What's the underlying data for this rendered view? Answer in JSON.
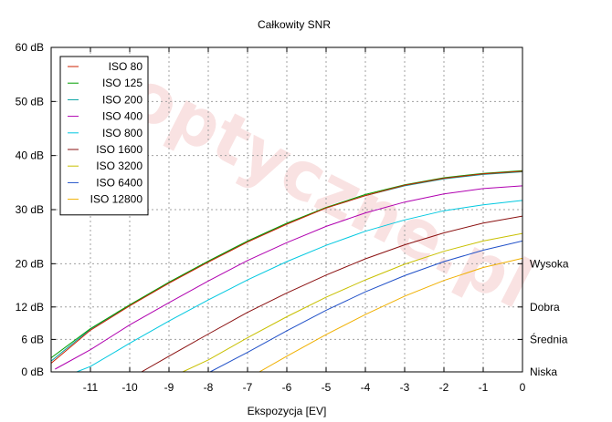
{
  "chart_data": {
    "type": "line",
    "title": "Całkowity SNR",
    "xlabel": "Ekspozycja [EV]",
    "ylabel": "",
    "xlim": [
      -12,
      0
    ],
    "ylim": [
      0,
      60
    ],
    "grid": true,
    "legend_position": "top-left",
    "x_ticks": [
      -11,
      -10,
      -9,
      -8,
      -7,
      -6,
      -5,
      -4,
      -3,
      -2,
      -1,
      0
    ],
    "x_tick_labels": [
      "-11",
      "-10",
      "-9",
      "-8",
      "-7",
      "-6",
      "-5",
      "-4",
      "-3",
      "-2",
      "-1",
      "0"
    ],
    "y_ticks": [
      0,
      6,
      12,
      20,
      30,
      40,
      50,
      60
    ],
    "y_tick_labels": [
      "0 dB",
      "6 dB",
      "12 dB",
      "20 dB",
      "30 dB",
      "40 dB",
      "50 dB",
      "60 dB"
    ],
    "right_ticks": [
      {
        "y": 0,
        "label": "Niska"
      },
      {
        "y": 6,
        "label": "Średnia"
      },
      {
        "y": 12,
        "label": "Dobra"
      },
      {
        "y": 20,
        "label": "Wysoka"
      }
    ],
    "watermark": "optyczne.pl",
    "series": [
      {
        "name": "ISO 80",
        "color": "#cc2200",
        "x": [
          -12,
          -11,
          -10,
          -9,
          -8,
          -7,
          -6,
          -5,
          -4,
          -3,
          -2,
          -1,
          0
        ],
        "y": [
          1.6,
          7.7,
          12.2,
          16.4,
          20.3,
          24.0,
          27.3,
          30.3,
          32.6,
          34.5,
          35.8,
          36.6,
          37.1
        ]
      },
      {
        "name": "ISO 125",
        "color": "#00a000",
        "x": [
          -12,
          -11,
          -10,
          -9,
          -8,
          -7,
          -6,
          -5,
          -4,
          -3,
          -2,
          -1,
          0
        ],
        "y": [
          2.6,
          8.0,
          12.4,
          16.6,
          20.5,
          24.2,
          27.5,
          30.4,
          32.8,
          34.6,
          35.9,
          36.7,
          37.2
        ]
      },
      {
        "name": "ISO 200",
        "color": "#00a0a0",
        "x": [
          -12,
          -11,
          -10,
          -9,
          -8,
          -7,
          -6,
          -5,
          -4,
          -3,
          -2,
          -1,
          0
        ],
        "y": [
          2.0,
          7.9,
          12.3,
          16.5,
          20.4,
          24.1,
          27.4,
          30.3,
          32.6,
          34.4,
          35.7,
          36.5,
          37.0
        ]
      },
      {
        "name": "ISO 400",
        "color": "#b000b0",
        "x": [
          -11.9,
          -11,
          -10,
          -9,
          -8,
          -7,
          -6,
          -5,
          -4,
          -3,
          -2,
          -1,
          0
        ],
        "y": [
          0.5,
          4.1,
          8.7,
          12.8,
          16.8,
          20.6,
          23.9,
          26.9,
          29.4,
          31.4,
          32.9,
          33.9,
          34.4
        ]
      },
      {
        "name": "ISO 800",
        "color": "#00c8e0",
        "x": [
          -11.35,
          -11,
          -10,
          -9,
          -8,
          -7,
          -6,
          -5,
          -4,
          -3,
          -2,
          -1,
          0
        ],
        "y": [
          0,
          1.0,
          5.3,
          9.4,
          13.3,
          17.0,
          20.4,
          23.4,
          26.0,
          28.1,
          29.8,
          30.9,
          31.7
        ]
      },
      {
        "name": "ISO 1600",
        "color": "#8a1010",
        "x": [
          -9.7,
          -9,
          -8,
          -7,
          -6,
          -5,
          -4,
          -3,
          -2,
          -1,
          0
        ],
        "y": [
          0,
          2.9,
          7.0,
          11.0,
          14.6,
          17.9,
          20.9,
          23.5,
          25.7,
          27.5,
          28.8
        ]
      },
      {
        "name": "ISO 3200",
        "color": "#c8c000",
        "x": [
          -8.65,
          -8,
          -7,
          -6,
          -5,
          -4,
          -3,
          -2,
          -1,
          0
        ],
        "y": [
          0,
          2.2,
          6.3,
          10.2,
          13.8,
          17.0,
          19.9,
          22.3,
          24.2,
          25.6
        ]
      },
      {
        "name": "ISO 6400",
        "color": "#2050c8",
        "x": [
          -7.95,
          -7,
          -6,
          -5,
          -4,
          -3,
          -2,
          -1,
          0
        ],
        "y": [
          0,
          3.6,
          7.6,
          11.4,
          14.8,
          17.8,
          20.4,
          22.5,
          24.2
        ]
      },
      {
        "name": "ISO 12800",
        "color": "#f0b000",
        "x": [
          -6.7,
          -6,
          -5,
          -4,
          -3,
          -2,
          -1,
          0
        ],
        "y": [
          0,
          2.9,
          6.9,
          10.6,
          14.0,
          16.9,
          19.3,
          21.0
        ]
      }
    ]
  }
}
